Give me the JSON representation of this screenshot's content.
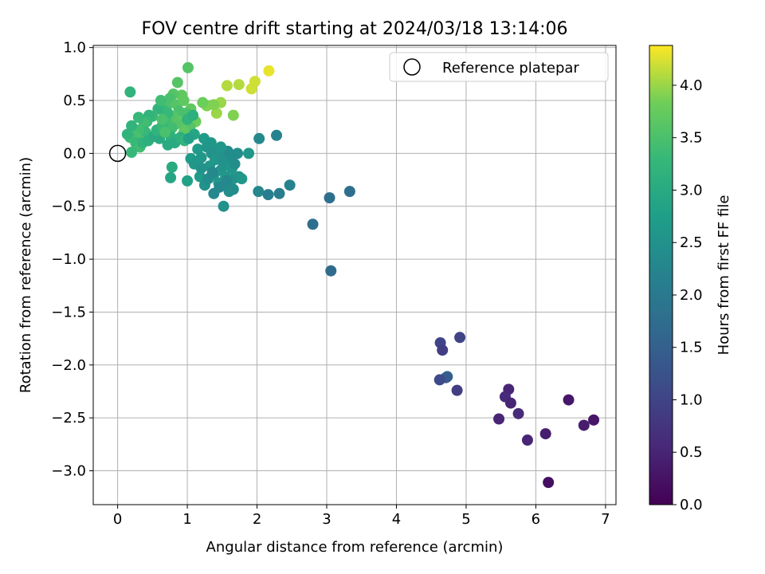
{
  "chart_data": {
    "type": "scatter",
    "title": "FOV centre drift starting at 2024/03/18 13:14:06",
    "xlabel": "Angular distance from reference (arcmin)",
    "ylabel": "Rotation from reference (arcmin)",
    "xlim": [
      -0.35,
      7.15
    ],
    "ylim": [
      -3.32,
      1.02
    ],
    "xticks": [
      0,
      1,
      2,
      3,
      4,
      5,
      6,
      7
    ],
    "xtick_labels": [
      "0",
      "1",
      "2",
      "3",
      "4",
      "5",
      "6",
      "7"
    ],
    "yticks": [
      1.0,
      0.5,
      0.0,
      -0.5,
      -1.0,
      -1.5,
      -2.0,
      -2.5,
      -3.0
    ],
    "ytick_labels": [
      "1.0",
      "0.5",
      "0.0",
      "−0.5",
      "−1.0",
      "−1.5",
      "−2.0",
      "−2.5",
      "−3.0"
    ],
    "grid": true,
    "legend": {
      "placement": "top-right",
      "entries": [
        "Reference platepar"
      ]
    },
    "reference_point": {
      "x": 0,
      "y": 0,
      "marker": "hollow-circle"
    },
    "colorbar": {
      "label": "Hours from first FF file",
      "colormap": "viridis",
      "range": [
        0.0,
        4.38
      ],
      "ticks": [
        0.0,
        0.5,
        1.0,
        1.5,
        2.0,
        2.5,
        3.0,
        3.5,
        4.0
      ],
      "tick_labels": [
        "0.0",
        "0.5",
        "1.0",
        "1.5",
        "2.0",
        "2.5",
        "3.0",
        "3.5",
        "4.0"
      ]
    },
    "points": [
      {
        "x": 2.17,
        "y": 0.78,
        "t": 4.3
      },
      {
        "x": 1.97,
        "y": 0.68,
        "t": 4.2
      },
      {
        "x": 1.92,
        "y": 0.61,
        "t": 4.2
      },
      {
        "x": 1.74,
        "y": 0.65,
        "t": 4.1
      },
      {
        "x": 1.57,
        "y": 0.64,
        "t": 4.1
      },
      {
        "x": 1.48,
        "y": 0.48,
        "t": 4.0
      },
      {
        "x": 1.42,
        "y": 0.38,
        "t": 4.0
      },
      {
        "x": 1.38,
        "y": 0.46,
        "t": 3.9
      },
      {
        "x": 1.28,
        "y": 0.45,
        "t": 3.9
      },
      {
        "x": 1.22,
        "y": 0.48,
        "t": 3.8
      },
      {
        "x": 1.66,
        "y": 0.36,
        "t": 3.9
      },
      {
        "x": 1.12,
        "y": 0.3,
        "t": 3.8
      },
      {
        "x": 1.05,
        "y": 0.42,
        "t": 3.7
      },
      {
        "x": 1.01,
        "y": 0.81,
        "t": 3.6
      },
      {
        "x": 0.86,
        "y": 0.67,
        "t": 3.6
      },
      {
        "x": 0.92,
        "y": 0.55,
        "t": 3.7
      },
      {
        "x": 0.8,
        "y": 0.56,
        "t": 3.6
      },
      {
        "x": 0.75,
        "y": 0.52,
        "t": 3.5
      },
      {
        "x": 0.7,
        "y": 0.44,
        "t": 3.5
      },
      {
        "x": 0.85,
        "y": 0.46,
        "t": 3.6
      },
      {
        "x": 0.95,
        "y": 0.5,
        "t": 3.7
      },
      {
        "x": 0.88,
        "y": 0.4,
        "t": 3.5
      },
      {
        "x": 0.8,
        "y": 0.35,
        "t": 3.6
      },
      {
        "x": 0.92,
        "y": 0.3,
        "t": 3.7
      },
      {
        "x": 0.98,
        "y": 0.38,
        "t": 3.5
      },
      {
        "x": 1.04,
        "y": 0.25,
        "t": 3.6
      },
      {
        "x": 0.95,
        "y": 0.2,
        "t": 3.7
      },
      {
        "x": 0.85,
        "y": 0.28,
        "t": 3.6
      },
      {
        "x": 0.78,
        "y": 0.24,
        "t": 3.4
      },
      {
        "x": 0.7,
        "y": 0.3,
        "t": 3.4
      },
      {
        "x": 0.72,
        "y": 0.38,
        "t": 3.3
      },
      {
        "x": 0.66,
        "y": 0.4,
        "t": 3.3
      },
      {
        "x": 0.58,
        "y": 0.42,
        "t": 3.2
      },
      {
        "x": 0.5,
        "y": 0.35,
        "t": 3.3
      },
      {
        "x": 0.45,
        "y": 0.36,
        "t": 3.2
      },
      {
        "x": 0.42,
        "y": 0.3,
        "t": 3.3
      },
      {
        "x": 0.38,
        "y": 0.28,
        "t": 3.4
      },
      {
        "x": 0.4,
        "y": 0.2,
        "t": 3.3
      },
      {
        "x": 0.3,
        "y": 0.22,
        "t": 3.4
      },
      {
        "x": 0.28,
        "y": 0.14,
        "t": 3.5
      },
      {
        "x": 0.22,
        "y": 0.18,
        "t": 3.5
      },
      {
        "x": 0.18,
        "y": 0.15,
        "t": 3.4
      },
      {
        "x": 0.14,
        "y": 0.18,
        "t": 3.2
      },
      {
        "x": 0.2,
        "y": 0.26,
        "t": 3.2
      },
      {
        "x": 0.26,
        "y": 0.1,
        "t": 3.3
      },
      {
        "x": 0.32,
        "y": 0.06,
        "t": 3.4
      },
      {
        "x": 0.36,
        "y": 0.1,
        "t": 3.2
      },
      {
        "x": 0.44,
        "y": 0.12,
        "t": 3.1
      },
      {
        "x": 0.52,
        "y": 0.16,
        "t": 3.0
      },
      {
        "x": 0.6,
        "y": 0.14,
        "t": 3.0
      },
      {
        "x": 0.56,
        "y": 0.22,
        "t": 3.2
      },
      {
        "x": 0.64,
        "y": 0.26,
        "t": 3.3
      },
      {
        "x": 0.2,
        "y": 0.01,
        "t": 3.3
      },
      {
        "x": 0.18,
        "y": 0.58,
        "t": 3.2
      },
      {
        "x": 0.62,
        "y": 0.5,
        "t": 3.4
      },
      {
        "x": 0.76,
        "y": 0.16,
        "t": 3.1
      },
      {
        "x": 0.72,
        "y": 0.08,
        "t": 3.0
      },
      {
        "x": 0.82,
        "y": 0.1,
        "t": 3.0
      },
      {
        "x": 0.9,
        "y": 0.15,
        "t": 3.1
      },
      {
        "x": 0.96,
        "y": 0.12,
        "t": 3.2
      },
      {
        "x": 1.0,
        "y": 0.32,
        "t": 3.2
      },
      {
        "x": 1.08,
        "y": 0.36,
        "t": 3.1
      },
      {
        "x": 1.1,
        "y": 0.18,
        "t": 2.9
      },
      {
        "x": 0.64,
        "y": 0.32,
        "t": 3.5
      },
      {
        "x": 0.3,
        "y": 0.34,
        "t": 3.3
      },
      {
        "x": 0.68,
        "y": 0.2,
        "t": 3.5
      },
      {
        "x": 0.78,
        "y": -0.13,
        "t": 3.0
      },
      {
        "x": 0.76,
        "y": -0.23,
        "t": 2.9
      },
      {
        "x": 1.0,
        "y": -0.26,
        "t": 2.8
      },
      {
        "x": 1.02,
        "y": 0.14,
        "t": 2.8
      },
      {
        "x": 1.15,
        "y": 0.04,
        "t": 2.7
      },
      {
        "x": 1.05,
        "y": -0.05,
        "t": 2.7
      },
      {
        "x": 1.1,
        "y": -0.1,
        "t": 2.6
      },
      {
        "x": 1.2,
        "y": -0.04,
        "t": 2.6
      },
      {
        "x": 1.18,
        "y": -0.22,
        "t": 2.7
      },
      {
        "x": 1.24,
        "y": 0.14,
        "t": 2.7
      },
      {
        "x": 1.28,
        "y": 0.06,
        "t": 2.6
      },
      {
        "x": 1.32,
        "y": -0.12,
        "t": 2.6
      },
      {
        "x": 1.35,
        "y": 0.0,
        "t": 2.5
      },
      {
        "x": 1.38,
        "y": -0.2,
        "t": 2.5
      },
      {
        "x": 1.4,
        "y": -0.06,
        "t": 2.6
      },
      {
        "x": 1.42,
        "y": 0.04,
        "t": 2.5
      },
      {
        "x": 1.45,
        "y": -0.28,
        "t": 2.6
      },
      {
        "x": 1.48,
        "y": -0.16,
        "t": 2.6
      },
      {
        "x": 1.5,
        "y": -0.04,
        "t": 2.5
      },
      {
        "x": 1.52,
        "y": -0.12,
        "t": 2.5
      },
      {
        "x": 1.55,
        "y": -0.22,
        "t": 2.6
      },
      {
        "x": 1.58,
        "y": -0.3,
        "t": 2.5
      },
      {
        "x": 1.6,
        "y": -0.08,
        "t": 2.5
      },
      {
        "x": 1.62,
        "y": -0.02,
        "t": 2.4
      },
      {
        "x": 1.64,
        "y": -0.14,
        "t": 2.6
      },
      {
        "x": 1.66,
        "y": -0.24,
        "t": 2.5
      },
      {
        "x": 1.68,
        "y": -0.1,
        "t": 2.4
      },
      {
        "x": 1.72,
        "y": 0.0,
        "t": 2.4
      },
      {
        "x": 1.74,
        "y": -0.22,
        "t": 2.5
      },
      {
        "x": 1.78,
        "y": -0.24,
        "t": 2.6
      },
      {
        "x": 1.58,
        "y": 0.02,
        "t": 2.4
      },
      {
        "x": 1.6,
        "y": -0.36,
        "t": 2.4
      },
      {
        "x": 1.38,
        "y": -0.38,
        "t": 2.3
      },
      {
        "x": 1.52,
        "y": -0.5,
        "t": 2.5
      },
      {
        "x": 1.25,
        "y": -0.3,
        "t": 2.5
      },
      {
        "x": 1.2,
        "y": -0.14,
        "t": 2.5
      },
      {
        "x": 1.3,
        "y": -0.24,
        "t": 2.4
      },
      {
        "x": 1.36,
        "y": -0.18,
        "t": 2.3
      },
      {
        "x": 1.46,
        "y": -0.32,
        "t": 2.3
      },
      {
        "x": 1.56,
        "y": -0.26,
        "t": 2.3
      },
      {
        "x": 1.66,
        "y": -0.34,
        "t": 2.4
      },
      {
        "x": 1.34,
        "y": 0.1,
        "t": 2.6
      },
      {
        "x": 1.48,
        "y": 0.06,
        "t": 2.6
      },
      {
        "x": 1.88,
        "y": 0.0,
        "t": 2.6
      },
      {
        "x": 2.03,
        "y": 0.14,
        "t": 2.3
      },
      {
        "x": 2.28,
        "y": 0.17,
        "t": 2.2
      },
      {
        "x": 2.02,
        "y": -0.36,
        "t": 2.3
      },
      {
        "x": 2.16,
        "y": -0.39,
        "t": 2.1
      },
      {
        "x": 2.32,
        "y": -0.38,
        "t": 2.1
      },
      {
        "x": 2.47,
        "y": -0.3,
        "t": 2.2
      },
      {
        "x": 2.8,
        "y": -0.67,
        "t": 1.8
      },
      {
        "x": 3.04,
        "y": -0.42,
        "t": 1.8
      },
      {
        "x": 3.06,
        "y": -1.11,
        "t": 1.7
      },
      {
        "x": 3.33,
        "y": -0.36,
        "t": 1.8
      },
      {
        "x": 4.63,
        "y": -1.79,
        "t": 1.0
      },
      {
        "x": 4.66,
        "y": -1.86,
        "t": 0.9
      },
      {
        "x": 4.91,
        "y": -1.74,
        "t": 1.0
      },
      {
        "x": 4.73,
        "y": -2.11,
        "t": 1.6
      },
      {
        "x": 4.71,
        "y": -2.12,
        "t": 1.4
      },
      {
        "x": 4.62,
        "y": -2.14,
        "t": 1.1
      },
      {
        "x": 4.87,
        "y": -2.24,
        "t": 0.9
      },
      {
        "x": 5.61,
        "y": -2.23,
        "t": 0.5
      },
      {
        "x": 5.56,
        "y": -2.3,
        "t": 0.6
      },
      {
        "x": 5.64,
        "y": -2.36,
        "t": 0.5
      },
      {
        "x": 5.75,
        "y": -2.46,
        "t": 0.6
      },
      {
        "x": 5.47,
        "y": -2.51,
        "t": 0.5
      },
      {
        "x": 5.88,
        "y": -2.71,
        "t": 0.5
      },
      {
        "x": 6.14,
        "y": -2.65,
        "t": 0.4
      },
      {
        "x": 6.47,
        "y": -2.33,
        "t": 0.3
      },
      {
        "x": 6.69,
        "y": -2.57,
        "t": 0.4
      },
      {
        "x": 6.83,
        "y": -2.52,
        "t": 0.3
      },
      {
        "x": 6.18,
        "y": -3.11,
        "t": 0.2
      }
    ]
  }
}
